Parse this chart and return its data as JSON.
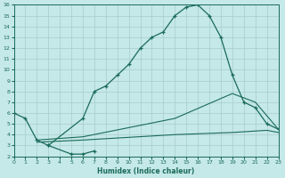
{
  "xlabel": "Humidex (Indice chaleur)",
  "bg_color": "#c5e8e8",
  "line_color": "#1a6b5a",
  "grid_color": "#a8cccc",
  "xlim": [
    0,
    23
  ],
  "ylim": [
    2,
    16
  ],
  "xticks": [
    0,
    1,
    2,
    3,
    4,
    5,
    6,
    7,
    8,
    9,
    10,
    11,
    12,
    13,
    14,
    15,
    16,
    17,
    18,
    19,
    20,
    21,
    22,
    23
  ],
  "yticks": [
    2,
    3,
    4,
    5,
    6,
    7,
    8,
    9,
    10,
    11,
    12,
    13,
    14,
    15,
    16
  ],
  "curve1_x": [
    0,
    1,
    2,
    3,
    6,
    7,
    8,
    9,
    10,
    11,
    12,
    13,
    14,
    15,
    16,
    17,
    18,
    19,
    20,
    21,
    22,
    23
  ],
  "curve1_y": [
    6.0,
    5.5,
    3.5,
    3.0,
    5.5,
    8.0,
    8.5,
    9.5,
    10.5,
    12.0,
    13.0,
    13.5,
    15.0,
    15.8,
    16.0,
    15.0,
    13.0,
    9.5,
    7.0,
    6.5,
    5.0,
    4.5
  ],
  "curve2_x": [
    3,
    5,
    6,
    7
  ],
  "curve2_y": [
    3.0,
    2.2,
    2.2,
    2.5
  ],
  "flat1_x": [
    2,
    6,
    14,
    19,
    22,
    23
  ],
  "flat1_y": [
    3.3,
    3.5,
    4.0,
    4.2,
    4.4,
    4.2
  ],
  "flat2_x": [
    2,
    6,
    14,
    19,
    21,
    23
  ],
  "flat2_y": [
    3.5,
    3.8,
    5.5,
    7.8,
    7.0,
    4.5
  ]
}
